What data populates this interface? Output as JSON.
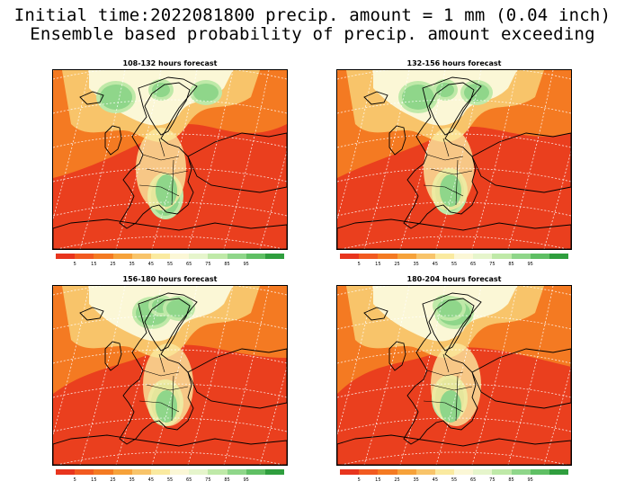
{
  "title_line1": "Initial time:2022081800 precip. amount = 1 mm (0.04 inch)",
  "title_line2": "Ensemble based probability of precip. amount exceeding",
  "panels": [
    {
      "title": "108-132 hours forecast",
      "dry_level": 0.45
    },
    {
      "title": "132-156 hours forecast",
      "dry_level": 0.55
    },
    {
      "title": "156-180 hours forecast",
      "dry_level": 0.5
    },
    {
      "title": "180-204 hours forecast",
      "dry_level": 0.5
    }
  ],
  "colorbar": {
    "colors": [
      "#e8351e",
      "#f25a20",
      "#f47a22",
      "#f6a23a",
      "#f8c46a",
      "#faeaa0",
      "#fbf7d6",
      "#e6f5cc",
      "#bfe9a8",
      "#8fd68a",
      "#5fbf64",
      "#2f9e3e"
    ],
    "labels": [
      "5",
      "15",
      "25",
      "35",
      "45",
      "55",
      "65",
      "75",
      "85",
      "95"
    ]
  }
}
